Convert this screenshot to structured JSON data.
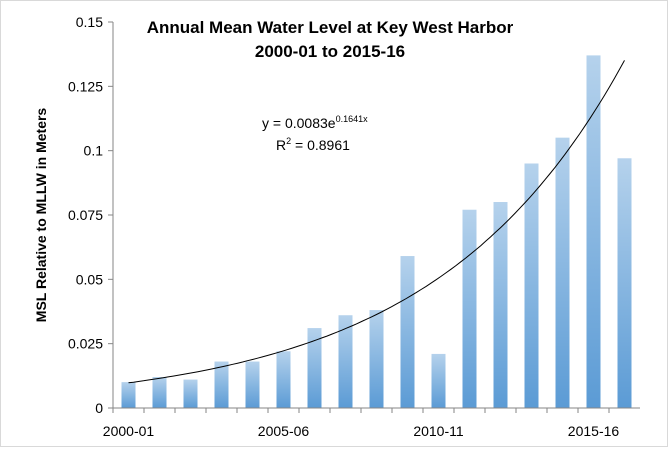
{
  "chart_data": {
    "type": "bar",
    "title": [
      "Annual Mean Water Level at Key West Harbor",
      "2000-01 to 2015-16"
    ],
    "y_label": "MSL Relative to MLLW in Meters",
    "categories": [
      "2000-01",
      null,
      null,
      null,
      null,
      "2005-06",
      null,
      null,
      null,
      null,
      "2010-11",
      null,
      null,
      null,
      null,
      "2015-16",
      null
    ],
    "values": [
      0.01,
      0.012,
      0.011,
      0.018,
      0.018,
      0.022,
      0.031,
      0.036,
      0.038,
      0.059,
      0.021,
      0.077,
      0.08,
      0.095,
      0.105,
      0.137,
      0.097
    ],
    "color": "#5b9bd5",
    "ylim": [
      0,
      0.15
    ],
    "yticks": [
      0,
      0.025,
      0.05,
      0.075,
      0.1,
      0.125,
      0.15
    ],
    "trendline": {
      "color": "#000000",
      "equation": "y = 0.0083e",
      "exponent": "0.1641x",
      "r_squared_label": "R",
      "r_squared_power": "2",
      "r_squared_value": " = 0.8961"
    }
  }
}
